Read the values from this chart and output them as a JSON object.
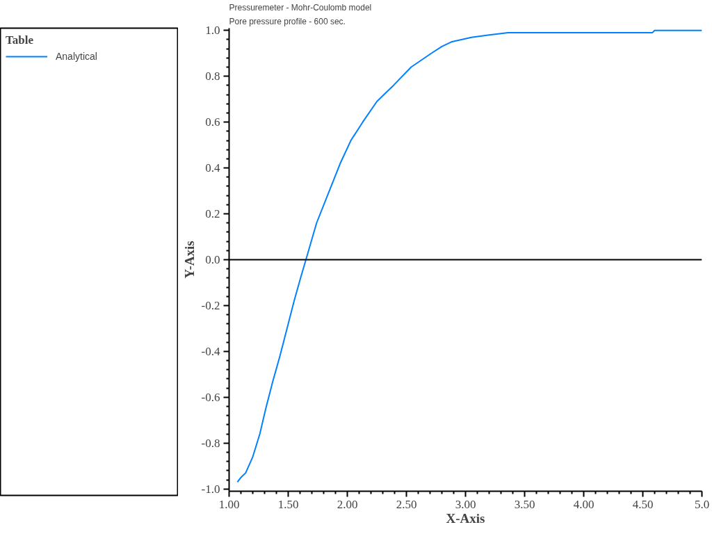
{
  "chart_data": {
    "type": "line",
    "title": "Pressuremeter - Mohr-Coulomb model",
    "subtitle": "Pore pressure profile - 600 sec.",
    "xlabel": "X-Axis",
    "ylabel": "Y-Axis",
    "legend_title": "Table",
    "series": [
      {
        "name": "Analytical",
        "color": "#0080ff",
        "x": [
          1.07,
          1.1,
          1.14,
          1.2,
          1.26,
          1.31,
          1.37,
          1.43,
          1.49,
          1.55,
          1.61,
          1.65,
          1.74,
          1.84,
          1.94,
          2.03,
          2.13,
          2.25,
          2.33,
          2.39,
          2.54,
          2.71,
          2.8,
          2.88,
          3.05,
          3.19,
          3.36,
          4.58,
          4.6,
          5.0
        ],
        "values": [
          -0.97,
          -0.95,
          -0.93,
          -0.86,
          -0.76,
          -0.65,
          -0.53,
          -0.42,
          -0.3,
          -0.18,
          -0.07,
          0.0,
          0.16,
          0.29,
          0.42,
          0.52,
          0.6,
          0.69,
          0.73,
          0.76,
          0.84,
          0.9,
          0.93,
          0.95,
          0.97,
          0.98,
          0.99,
          0.99,
          1.0,
          1.0
        ]
      }
    ],
    "xlim": [
      1.0,
      5.0
    ],
    "ylim": [
      -1.01,
      1.01
    ],
    "xticks": [
      {
        "value": 1,
        "label": "1.00"
      },
      {
        "value": 1.5,
        "label": "1.50"
      },
      {
        "value": 2,
        "label": "2.00"
      },
      {
        "value": 2.5,
        "label": "2.50"
      },
      {
        "value": 3,
        "label": "3.00"
      },
      {
        "value": 3.5,
        "label": "3.50"
      },
      {
        "value": 4,
        "label": "4.00"
      },
      {
        "value": 4.5,
        "label": "4.50"
      },
      {
        "value": 5,
        "label": "5.0"
      }
    ],
    "yticks": [
      {
        "value": -1,
        "label": "-1.0"
      },
      {
        "value": -0.8,
        "label": "-0.8"
      },
      {
        "value": -0.6,
        "label": "-0.6"
      },
      {
        "value": -0.4,
        "label": "-0.4"
      },
      {
        "value": -0.2,
        "label": "-0.2"
      },
      {
        "value": 0,
        "label": "0.0"
      },
      {
        "value": 0.2,
        "label": "0.2"
      },
      {
        "value": 0.4,
        "label": "0.4"
      },
      {
        "value": 0.6,
        "label": "0.6"
      },
      {
        "value": 0.8,
        "label": "0.8"
      },
      {
        "value": 1,
        "label": "1.0"
      }
    ],
    "ref_lines": [
      {
        "axis": "y",
        "value": 0,
        "color": "#000000"
      }
    ],
    "grid": false,
    "legend": "left",
    "line_style": "solid"
  }
}
